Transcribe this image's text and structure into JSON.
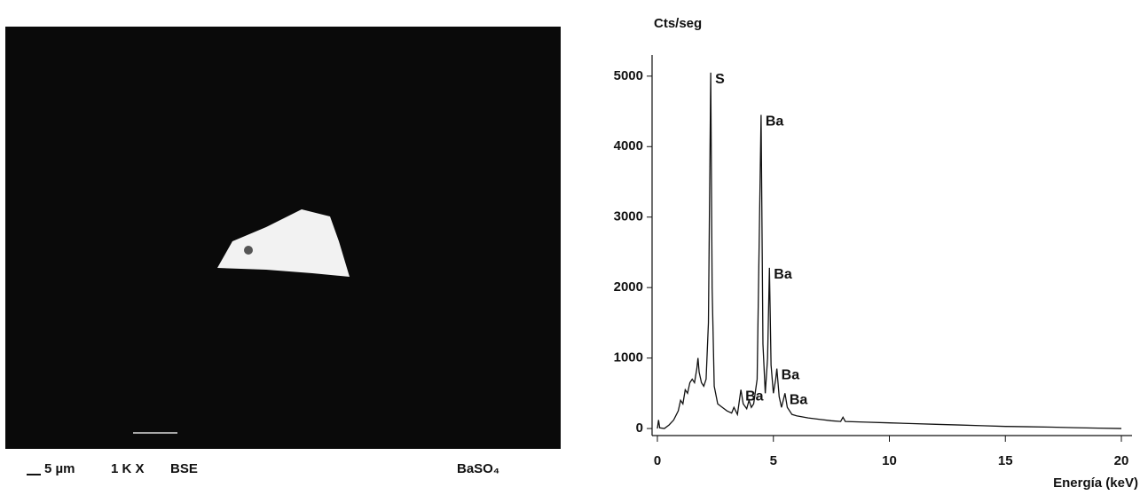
{
  "image_caption": {
    "scale": "5 µm",
    "magnification": "1 K X",
    "mode": "BSE",
    "compound": "BaSO₄"
  },
  "chart_data": {
    "type": "line",
    "y_label": "Cts/seg",
    "x_label": "Energía (keV)",
    "x": [
      0,
      0.05,
      0.1,
      0.3,
      0.5,
      0.7,
      0.9,
      1.0,
      1.1,
      1.2,
      1.3,
      1.4,
      1.5,
      1.6,
      1.7,
      1.75,
      1.8,
      1.9,
      2.0,
      2.1,
      2.2,
      2.3,
      2.36,
      2.45,
      2.6,
      2.8,
      3.0,
      3.2,
      3.3,
      3.45,
      3.6,
      3.7,
      3.85,
      3.95,
      4.05,
      4.15,
      4.3,
      4.47,
      4.55,
      4.65,
      4.75,
      4.83,
      4.9,
      5.0,
      5.1,
      5.15,
      5.25,
      5.35,
      5.5,
      5.6,
      5.8,
      6.0,
      6.5,
      7.0,
      7.5,
      7.9,
      8.0,
      8.1,
      9,
      10,
      11,
      12,
      13,
      14,
      15,
      16,
      17,
      18,
      19,
      20
    ],
    "series": [
      {
        "color": "#111111",
        "values": [
          0,
          120,
          10,
          0,
          50,
          120,
          250,
          400,
          350,
          550,
          500,
          650,
          700,
          650,
          850,
          1000,
          800,
          650,
          600,
          700,
          1500,
          5050,
          2000,
          600,
          350,
          300,
          250,
          220,
          300,
          200,
          550,
          350,
          280,
          400,
          300,
          350,
          700,
          4450,
          1200,
          500,
          1000,
          2280,
          900,
          500,
          700,
          850,
          450,
          300,
          500,
          300,
          200,
          180,
          150,
          130,
          110,
          100,
          160,
          100,
          90,
          80,
          70,
          60,
          50,
          40,
          30,
          25,
          20,
          12,
          5,
          0
        ]
      }
    ],
    "annotations": [
      {
        "label": "S",
        "x": 2.3,
        "y": 5050
      },
      {
        "label": "Ba",
        "x": 4.47,
        "y": 4450
      },
      {
        "label": "Ba",
        "x": 4.83,
        "y": 2280
      },
      {
        "label": "Ba",
        "x": 3.6,
        "y": 550
      },
      {
        "label": "Ba",
        "x": 5.15,
        "y": 850
      },
      {
        "label": "Ba",
        "x": 5.5,
        "y": 500
      }
    ],
    "xlim": [
      0,
      20
    ],
    "ylim": [
      -100,
      5300
    ],
    "xticks": [
      0,
      5,
      10,
      15,
      20
    ],
    "yticks": [
      0,
      1000,
      2000,
      3000,
      4000,
      5000
    ]
  }
}
